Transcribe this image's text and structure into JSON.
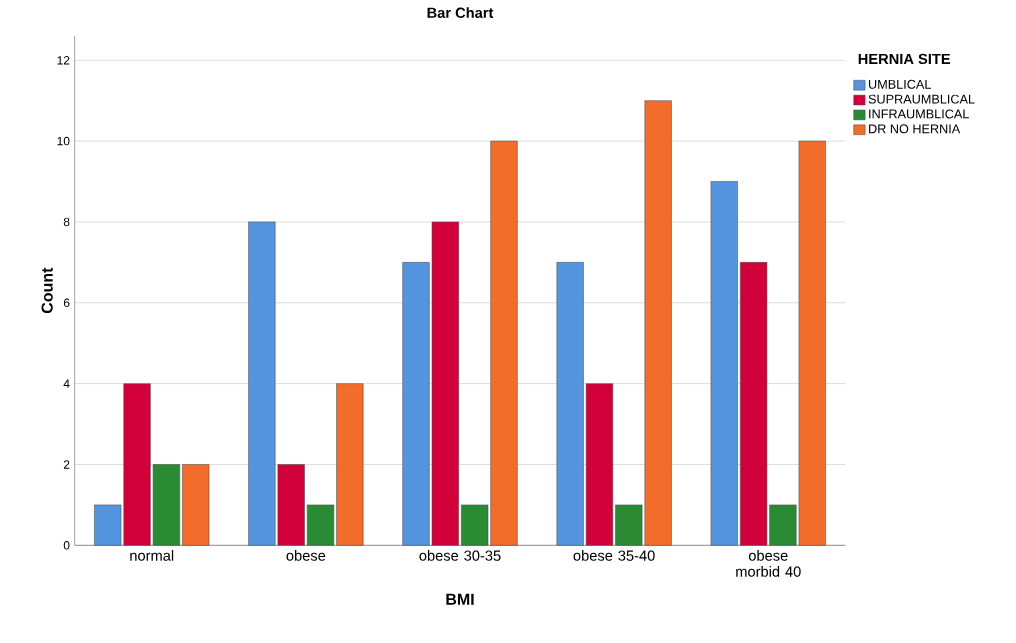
{
  "chart_data": {
    "type": "bar",
    "title": "Bar Chart",
    "xlabel": "BMI",
    "ylabel": "Count",
    "legend_title": "HERNIA SITE",
    "categories": [
      "normal",
      "obese",
      "obese 30-35",
      "obese 35-40",
      "obese morbid 40"
    ],
    "series": [
      {
        "name": "UMBLICAL",
        "color": "#5595e0",
        "values": [
          1,
          8,
          7,
          7,
          9
        ]
      },
      {
        "name": "SUPRAUMBLICAL",
        "color": "#d1003a",
        "values": [
          4,
          2,
          8,
          4,
          7
        ]
      },
      {
        "name": "INFRAUMBLICAL",
        "color": "#2b8a34",
        "values": [
          2,
          1,
          1,
          1,
          1
        ]
      },
      {
        "name": "DR NO HERNIA",
        "color": "#f26c2c",
        "values": [
          2,
          4,
          10,
          11,
          10
        ]
      }
    ],
    "ylim": [
      0,
      12.6
    ],
    "yticks": [
      0,
      2,
      4,
      6,
      8,
      10,
      12
    ],
    "grid": "y",
    "legend": "top right"
  }
}
